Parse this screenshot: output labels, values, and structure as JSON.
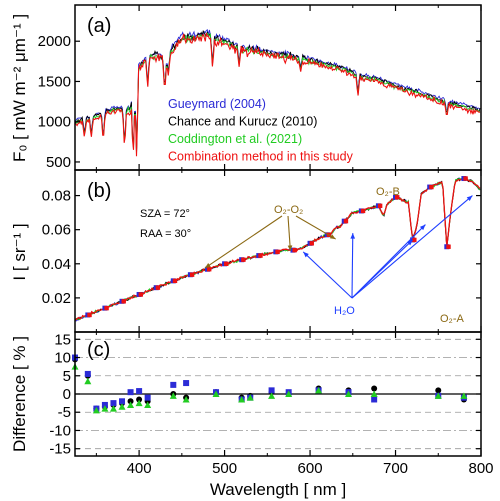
{
  "figure": {
    "xlabel": "Wavelength [ nm ]",
    "xticks": [
      400,
      500,
      600,
      700,
      800
    ]
  },
  "chart_data": [
    {
      "panel": "(a)",
      "type": "line",
      "ylabel": "F₀ [ mW m⁻² μm⁻¹ ]",
      "xlim": [
        325,
        800
      ],
      "ylim": [
        400,
        2450
      ],
      "yticks": [
        500,
        1000,
        1500,
        2000
      ],
      "legend": "bottom-left",
      "colors": {
        "gueymard": "#2b2bd6",
        "chance": "#000000",
        "coddington": "#22cc22",
        "combination": "#ee1111"
      },
      "series": [
        {
          "key": "gueymard",
          "name": "Gueymard (2004)",
          "color": "#2b2bd6"
        },
        {
          "key": "chance",
          "name": "Chance and Kurucz (2010)",
          "color": "#000000"
        },
        {
          "key": "coddington",
          "name": "Coddington et al. (2021)",
          "color": "#22cc22"
        },
        {
          "key": "combination",
          "name": "Combination method in this study",
          "color": "#ee1111"
        }
      ],
      "continuum": {
        "x": [
          325,
          340,
          355,
          370,
          380,
          390,
          400,
          410,
          420,
          430,
          440,
          450,
          460,
          470,
          480,
          490,
          500,
          520,
          540,
          560,
          580,
          600,
          620,
          640,
          660,
          680,
          700,
          720,
          740,
          760,
          780,
          800
        ],
        "y": [
          1000,
          1030,
          1090,
          1150,
          1160,
          1150,
          1680,
          1800,
          1830,
          1760,
          1920,
          2040,
          2050,
          2060,
          2080,
          2030,
          1990,
          1900,
          1880,
          1840,
          1800,
          1760,
          1710,
          1650,
          1560,
          1520,
          1440,
          1380,
          1310,
          1240,
          1190,
          1130
        ]
      },
      "absorption_lines": [
        {
          "x": 336,
          "y": 830
        },
        {
          "x": 344,
          "y": 820
        },
        {
          "x": 358,
          "y": 770
        },
        {
          "x": 383,
          "y": 680
        },
        {
          "x": 393,
          "y": 540
        },
        {
          "x": 397,
          "y": 600
        },
        {
          "x": 410,
          "y": 1430
        },
        {
          "x": 430,
          "y": 1390
        },
        {
          "x": 434,
          "y": 1580
        },
        {
          "x": 486,
          "y": 1680
        },
        {
          "x": 517,
          "y": 1710
        },
        {
          "x": 589,
          "y": 1650
        },
        {
          "x": 656,
          "y": 1330
        },
        {
          "x": 760,
          "y": 1070
        }
      ]
    },
    {
      "panel": "(b)",
      "type": "line",
      "ylabel": "I [ sr⁻¹ ]",
      "xlim": [
        325,
        800
      ],
      "ylim": [
        0,
        0.095
      ],
      "yticks": [
        0.02,
        0.04,
        0.06,
        0.08
      ],
      "conditions": [
        "SZA = 72°",
        "RAA = 30°"
      ],
      "spectrum": {
        "x": [
          325,
          350,
          375,
          400,
          425,
          450,
          475,
          500,
          525,
          550,
          570,
          580,
          590,
          600,
          610,
          625,
          630,
          635,
          640,
          650,
          660,
          680,
          686,
          690,
          700,
          715,
          720,
          725,
          730,
          740,
          750,
          755,
          760,
          765,
          770,
          780,
          790,
          800
        ],
        "y": [
          0.007,
          0.012,
          0.017,
          0.022,
          0.027,
          0.032,
          0.036,
          0.04,
          0.043,
          0.046,
          0.048,
          0.048,
          0.049,
          0.052,
          0.055,
          0.058,
          0.061,
          0.062,
          0.065,
          0.07,
          0.071,
          0.074,
          0.068,
          0.075,
          0.079,
          0.076,
          0.054,
          0.062,
          0.081,
          0.085,
          0.087,
          0.088,
          0.05,
          0.072,
          0.089,
          0.09,
          0.088,
          0.083
        ]
      },
      "annotations": [
        {
          "text": "O₂-O₂",
          "color": "#8b6914"
        },
        {
          "text": "O₂-B",
          "color": "#8b6914"
        },
        {
          "text": "O₂-A",
          "color": "#8b6914"
        },
        {
          "text": "H₂O",
          "color": "#1f3fff"
        }
      ]
    },
    {
      "panel": "(c)",
      "type": "scatter",
      "ylabel": "Difference [ % ]",
      "xlim": [
        325,
        800
      ],
      "ylim": [
        -17,
        17
      ],
      "yticks": [
        -15,
        -10,
        -5,
        0,
        5,
        10,
        15
      ],
      "series": [
        {
          "key": "black",
          "color": "#000000",
          "marker": "circle",
          "x": [
            325,
            340,
            350,
            360,
            370,
            380,
            390,
            400,
            410,
            440,
            455,
            490,
            520,
            530,
            555,
            575,
            610,
            645,
            675,
            750,
            780
          ],
          "y": [
            9.5,
            5.0,
            -4.0,
            -3.5,
            -3.0,
            -2.5,
            -2.0,
            -1.5,
            -2.0,
            0.0,
            -1.0,
            0.5,
            -1.0,
            -0.5,
            0.5,
            0.0,
            1.5,
            1.0,
            1.5,
            1.0,
            -1.5
          ]
        },
        {
          "key": "blue",
          "color": "#2b2bd6",
          "marker": "square",
          "x": [
            325,
            340,
            350,
            360,
            370,
            380,
            390,
            400,
            410,
            440,
            455,
            490,
            520,
            530,
            555,
            575,
            610,
            645,
            675,
            750,
            780
          ],
          "y": [
            10.0,
            5.5,
            -4.0,
            -3.0,
            -2.5,
            -2.0,
            0.5,
            0.8,
            -1.0,
            2.5,
            3.0,
            0.5,
            -1.5,
            -1.0,
            1.0,
            0.5,
            1.0,
            0.5,
            -1.5,
            -0.5,
            -1.0
          ]
        },
        {
          "key": "green",
          "color": "#22cc22",
          "marker": "triangle",
          "x": [
            325,
            340,
            350,
            360,
            370,
            380,
            390,
            400,
            410,
            440,
            455,
            490,
            520,
            530,
            555,
            575,
            610,
            645,
            675,
            750,
            780
          ],
          "y": [
            7.5,
            3.5,
            -4.5,
            -4.0,
            -4.0,
            -3.5,
            -3.0,
            -2.5,
            -3.0,
            -0.5,
            -1.5,
            0.0,
            -1.5,
            -1.0,
            -0.5,
            0.0,
            1.0,
            0.0,
            0.0,
            -0.5,
            -0.5
          ]
        }
      ]
    }
  ]
}
